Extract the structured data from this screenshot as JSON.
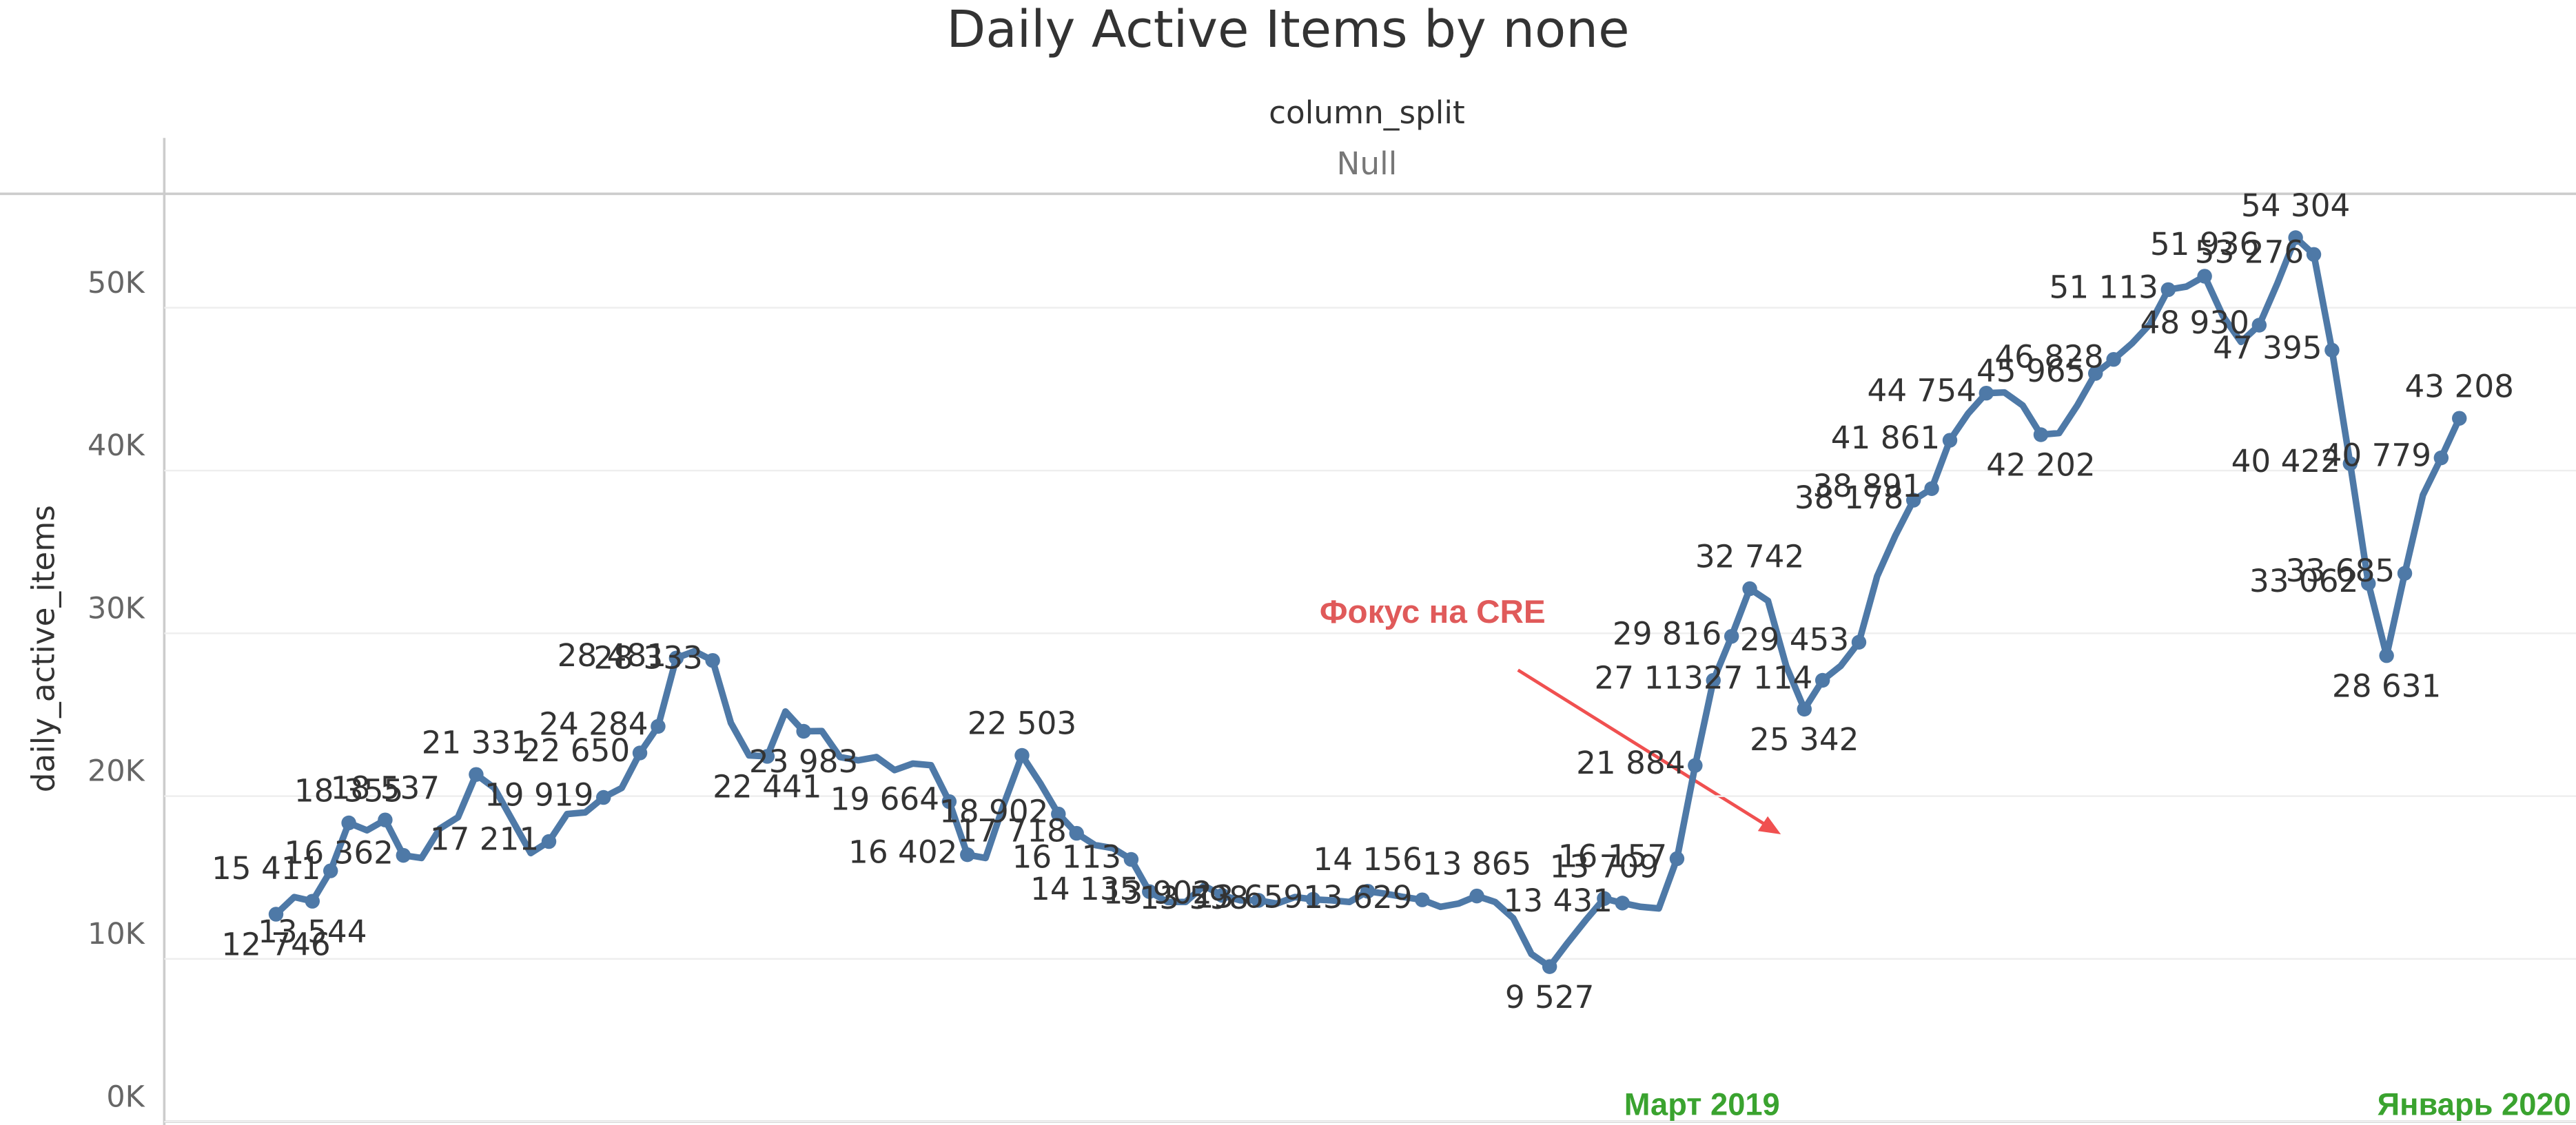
{
  "chart_data": {
    "type": "line",
    "title": "Daily Active Items by none",
    "header": "column_split",
    "header_value": "Null",
    "ylabel": "daily_active_items",
    "annotations": [
      "Фокус на CRE",
      "Март 2019",
      "Январь 2020"
    ],
    "color": "#4e79a7",
    "ylim": [
      0,
      57000
    ],
    "yticks": [
      {
        "value": 0,
        "label": "0K"
      },
      {
        "value": 10000,
        "label": "10K"
      },
      {
        "value": 20000,
        "label": "20K"
      },
      {
        "value": 30000,
        "label": "30K"
      },
      {
        "value": 40000,
        "label": "40K"
      },
      {
        "value": 50000,
        "label": "50K"
      }
    ],
    "grid": true,
    "values": [
      12746,
      13800,
      13544,
      15411,
      18355,
      17900,
      18537,
      16362,
      16200,
      18000,
      18700,
      21331,
      20500,
      18500,
      16500,
      17211,
      18900,
      19000,
      19919,
      20500,
      22650,
      24284,
      28481,
      28900,
      28333,
      24500,
      22500,
      22441,
      25200,
      23983,
      24000,
      22400,
      22200,
      22400,
      21600,
      22000,
      21900,
      19664,
      16402,
      16200,
      19500,
      22503,
      20800,
      18902,
      17718,
      17000,
      16800,
      16113,
      14135,
      13500,
      13500,
      14500,
      13902,
      13600,
      13598,
      13400,
      13800,
      13659,
      13600,
      13500,
      14156,
      14000,
      13800,
      13629,
      13200,
      13400,
      13865,
      13500,
      12500,
      10300,
      9527,
      11000,
      12400,
      13709,
      13431,
      13200,
      13100,
      16157,
      21884,
      27113,
      29816,
      32742,
      32000,
      28000,
      25342,
      27114,
      28000,
      29453,
      33500,
      36000,
      38178,
      38891,
      41861,
      43500,
      44754,
      44800,
      44000,
      42202,
      42300,
      44000,
      45965,
      46828,
      47800,
      49000,
      51113,
      51300,
      51936,
      49500,
      47900,
      48930,
      51500,
      54304,
      53276,
      47395,
      40422,
      33062,
      28631,
      33685,
      38500,
      40779,
      43208
    ],
    "value_labels": [
      "12 746",
      null,
      "13 544",
      "15 411",
      "18 355",
      null,
      "18 537",
      "16 362",
      null,
      null,
      null,
      "21 331",
      null,
      null,
      null,
      "17 211",
      null,
      null,
      "19 919",
      null,
      "22 650",
      "24 284",
      "28 481",
      null,
      "28 333",
      null,
      null,
      "22 441",
      null,
      "23 983",
      null,
      null,
      null,
      null,
      null,
      null,
      null,
      "19 664",
      "16 402",
      null,
      null,
      "22 503",
      null,
      "18 902",
      "17 718",
      null,
      null,
      "16 113",
      "14 135",
      null,
      null,
      null,
      "13 902",
      null,
      "13 598",
      null,
      null,
      "13 659",
      null,
      null,
      "14 156",
      null,
      null,
      "13 629",
      null,
      null,
      "13 865",
      null,
      null,
      null,
      "9 527",
      null,
      null,
      "13 709",
      "13 431",
      null,
      null,
      "16 157",
      "21 884",
      "27 113",
      "29 816",
      "32 742",
      null,
      null,
      "25 342",
      "27 114",
      null,
      "29 453",
      null,
      null,
      "38 178",
      "38 891",
      "41 861",
      null,
      "44 754",
      null,
      null,
      "42 202",
      null,
      null,
      "45 965",
      "46 828",
      null,
      null,
      "51 113",
      null,
      "51 936",
      null,
      null,
      "48 930",
      null,
      "54 304",
      "53 276",
      "47 395",
      "40 422",
      "33 062",
      "28 631",
      "33 685",
      null,
      "40 779",
      "43 208"
    ]
  }
}
